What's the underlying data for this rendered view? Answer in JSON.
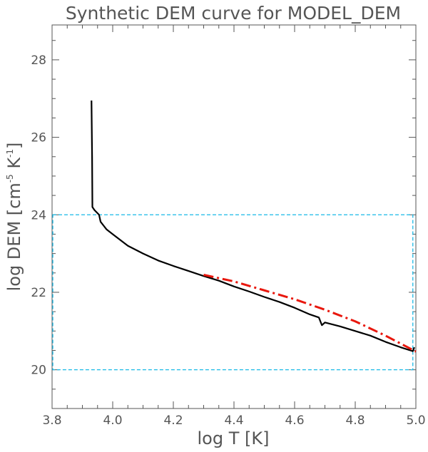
{
  "chart_data": {
    "type": "line",
    "title": "Synthetic DEM curve for MODEL_DEM",
    "xlabel": "log T [K]",
    "ylabel": {
      "prefix": "log DEM [cm",
      "sup1": "-5",
      "middle": " K",
      "sup2": "-1",
      "suffix": "]"
    },
    "xlim": [
      3.8,
      5.0
    ],
    "ylim": [
      19.0,
      28.9
    ],
    "x_ticks": [
      {
        "value": 3.8,
        "label": "3.8"
      },
      {
        "value": 4.0,
        "label": "4.0"
      },
      {
        "value": 4.2,
        "label": "4.2"
      },
      {
        "value": 4.4,
        "label": "4.4"
      },
      {
        "value": 4.6,
        "label": "4.6"
      },
      {
        "value": 4.8,
        "label": "4.8"
      },
      {
        "value": 5.0,
        "label": "5.0"
      }
    ],
    "y_ticks": [
      {
        "value": 20,
        "label": "20"
      },
      {
        "value": 22,
        "label": "22"
      },
      {
        "value": 24,
        "label": "24"
      },
      {
        "value": 26,
        "label": "26"
      },
      {
        "value": 28,
        "label": "28"
      }
    ],
    "x_minor_step": 0.05,
    "y_minor_step": 0.5,
    "grid": false,
    "legend": "none",
    "series": [
      {
        "style": "solid",
        "color": "#000000",
        "x": [
          3.93,
          3.932,
          3.933,
          3.94,
          3.955,
          3.96,
          3.97,
          3.98,
          4.0,
          4.05,
          4.1,
          4.15,
          4.2,
          4.25,
          4.3,
          4.35,
          4.4,
          4.45,
          4.5,
          4.55,
          4.6,
          4.65,
          4.68,
          4.69,
          4.7,
          4.75,
          4.8,
          4.85,
          4.9,
          4.95,
          4.99,
          4.995
        ],
        "y": [
          26.95,
          25.5,
          24.2,
          24.12,
          24.0,
          23.82,
          23.72,
          23.62,
          23.5,
          23.2,
          23.0,
          22.82,
          22.68,
          22.55,
          22.42,
          22.3,
          22.15,
          22.02,
          21.88,
          21.75,
          21.6,
          21.43,
          21.35,
          21.15,
          21.22,
          21.12,
          21.0,
          20.88,
          20.72,
          20.58,
          20.48,
          20.58
        ]
      },
      {
        "style": "dash-dot",
        "color": "#e8170d",
        "x": [
          4.3,
          4.4,
          4.5,
          4.6,
          4.7,
          4.8,
          4.9,
          5.0
        ],
        "y": [
          22.45,
          22.28,
          22.05,
          21.82,
          21.55,
          21.25,
          20.88,
          20.47
        ]
      }
    ],
    "box": {
      "color": "#19b9e6",
      "x": [
        3.8,
        4.99
      ],
      "y": [
        20.0,
        24.0
      ]
    }
  }
}
